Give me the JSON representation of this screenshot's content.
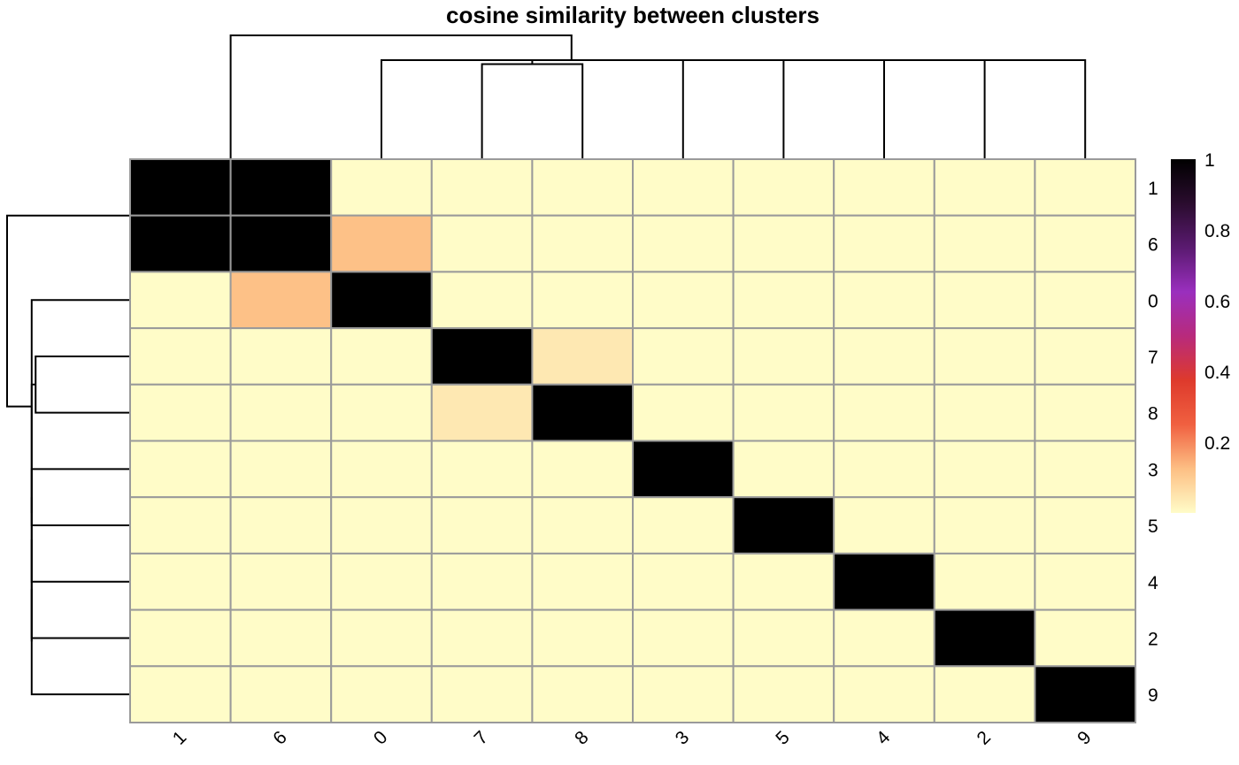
{
  "chart_data": {
    "type": "heatmap",
    "title": "cosine similarity between clusters",
    "row_labels": [
      "1",
      "6",
      "0",
      "7",
      "8",
      "3",
      "5",
      "4",
      "2",
      "9"
    ],
    "col_labels": [
      "1",
      "6",
      "0",
      "7",
      "8",
      "3",
      "5",
      "4",
      "2",
      "9"
    ],
    "values": [
      [
        1.0,
        1.0,
        0.0,
        0.0,
        0.0,
        0.0,
        0.0,
        0.0,
        0.0,
        0.0
      ],
      [
        1.0,
        1.0,
        0.12,
        0.0,
        0.0,
        0.0,
        0.0,
        0.0,
        0.0,
        0.0
      ],
      [
        0.0,
        0.12,
        1.0,
        0.0,
        0.0,
        0.0,
        0.0,
        0.0,
        0.0,
        0.0
      ],
      [
        0.0,
        0.0,
        0.0,
        1.0,
        0.04,
        0.0,
        0.0,
        0.0,
        0.0,
        0.0
      ],
      [
        0.0,
        0.0,
        0.0,
        0.04,
        1.0,
        0.0,
        0.0,
        0.0,
        0.0,
        0.0
      ],
      [
        0.0,
        0.0,
        0.0,
        0.0,
        0.0,
        1.0,
        0.0,
        0.0,
        0.0,
        0.0
      ],
      [
        0.0,
        0.0,
        0.0,
        0.0,
        0.0,
        0.0,
        1.0,
        0.0,
        0.0,
        0.0
      ],
      [
        0.0,
        0.0,
        0.0,
        0.0,
        0.0,
        0.0,
        0.0,
        1.0,
        0.0,
        0.0
      ],
      [
        0.0,
        0.0,
        0.0,
        0.0,
        0.0,
        0.0,
        0.0,
        0.0,
        1.0,
        0.0
      ],
      [
        0.0,
        0.0,
        0.0,
        0.0,
        0.0,
        0.0,
        0.0,
        0.0,
        0.0,
        1.0
      ]
    ],
    "colorbar": {
      "range": [
        0,
        1
      ],
      "ticks": [
        "1",
        "0.8",
        "0.6",
        "0.4",
        "0.2"
      ],
      "tick_values": [
        1,
        0.8,
        0.6,
        0.4,
        0.2
      ],
      "colors": [
        "#fffcc8",
        "#fdbf84",
        "#f06040",
        "#de3a2c",
        "#b82a7c",
        "#9a2fbe",
        "#5a1a70",
        "#2a0c2e",
        "#000000"
      ]
    },
    "dendrogram": {
      "leaves": [
        "1",
        "6",
        "0",
        "7",
        "8",
        "3",
        "5",
        "4",
        "2",
        "9"
      ],
      "merges": [
        {
          "a": "1",
          "b": "6",
          "height": 0.0
        },
        {
          "a": "3",
          "b": "5",
          "height": 1.0
        },
        {
          "a": "m2",
          "b": "4",
          "height": 1.0
        },
        {
          "a": "m3",
          "b": "2",
          "height": 1.0
        },
        {
          "a": "m4",
          "b": "9",
          "height": 1.0
        },
        {
          "a": "7",
          "b": "8",
          "height": 0.96
        },
        {
          "a": "m6",
          "b": "m5",
          "height": 1.0
        },
        {
          "a": "0",
          "b": "m7",
          "height": 1.0
        },
        {
          "a": "m1",
          "b": "m8",
          "height": 1.25
        }
      ]
    }
  }
}
